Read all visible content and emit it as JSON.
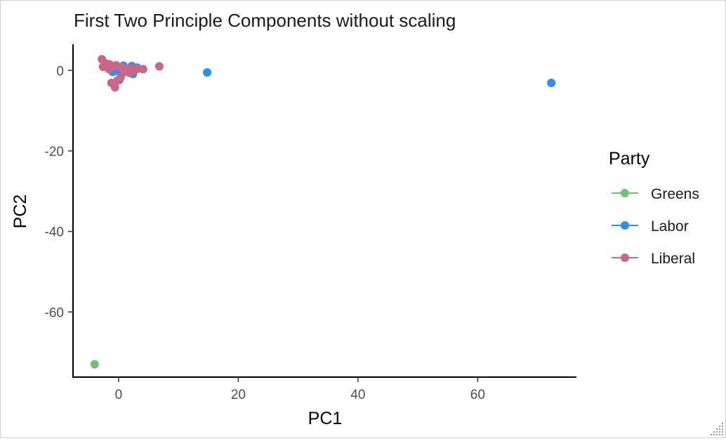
{
  "chart_data": {
    "type": "scatter",
    "title": "First Two Principle Components without scaling",
    "xlabel": "PC1",
    "ylabel": "PC2",
    "xlim": [
      -7.5,
      76.5
    ],
    "ylim": [
      -76,
      6.5
    ],
    "xticks": [
      0,
      20,
      40,
      60
    ],
    "yticks": [
      0,
      -20,
      -40,
      -60
    ],
    "grid": false,
    "legend": {
      "title": "Party",
      "position": "right"
    },
    "series": [
      {
        "name": "Greens",
        "color": "#6dc36f",
        "points": [
          [
            -4.0,
            -73.0
          ],
          [
            -0.3,
            -0.1
          ],
          [
            0.1,
            0.3
          ]
        ]
      },
      {
        "name": "Labor",
        "color": "#2b8ff3",
        "points": [
          [
            72.3,
            -3.1
          ],
          [
            14.8,
            -0.5
          ],
          [
            2.2,
            1.1
          ],
          [
            3.1,
            0.7
          ],
          [
            2.4,
            -0.9
          ],
          [
            1.0,
            0.3
          ],
          [
            0.4,
            -1.3
          ],
          [
            -0.6,
            0.9
          ],
          [
            -1.0,
            -0.4
          ],
          [
            0.8,
            1.2
          ],
          [
            0.1,
            -2.4
          ],
          [
            -0.4,
            0.2
          ],
          [
            1.6,
            0.0
          ],
          [
            0.5,
            0.6
          ]
        ]
      },
      {
        "name": "Liberal",
        "color": "#cc6688",
        "points": [
          [
            -2.8,
            2.8
          ],
          [
            -2.2,
            1.8
          ],
          [
            -1.5,
            1.5
          ],
          [
            -2.6,
            0.9
          ],
          [
            -0.8,
            1.0
          ],
          [
            0.4,
            0.8
          ],
          [
            1.2,
            0.4
          ],
          [
            2.1,
            0.6
          ],
          [
            3.2,
            0.4
          ],
          [
            4.1,
            0.3
          ],
          [
            6.8,
            1.0
          ],
          [
            1.8,
            -0.6
          ],
          [
            -1.2,
            -3.1
          ],
          [
            -0.6,
            -4.2
          ],
          [
            0.3,
            -1.8
          ],
          [
            -0.2,
            -2.5
          ],
          [
            0.9,
            -0.4
          ],
          [
            -1.6,
            0.3
          ],
          [
            -0.4,
            1.3
          ],
          [
            2.6,
            0.0
          ]
        ]
      }
    ]
  }
}
